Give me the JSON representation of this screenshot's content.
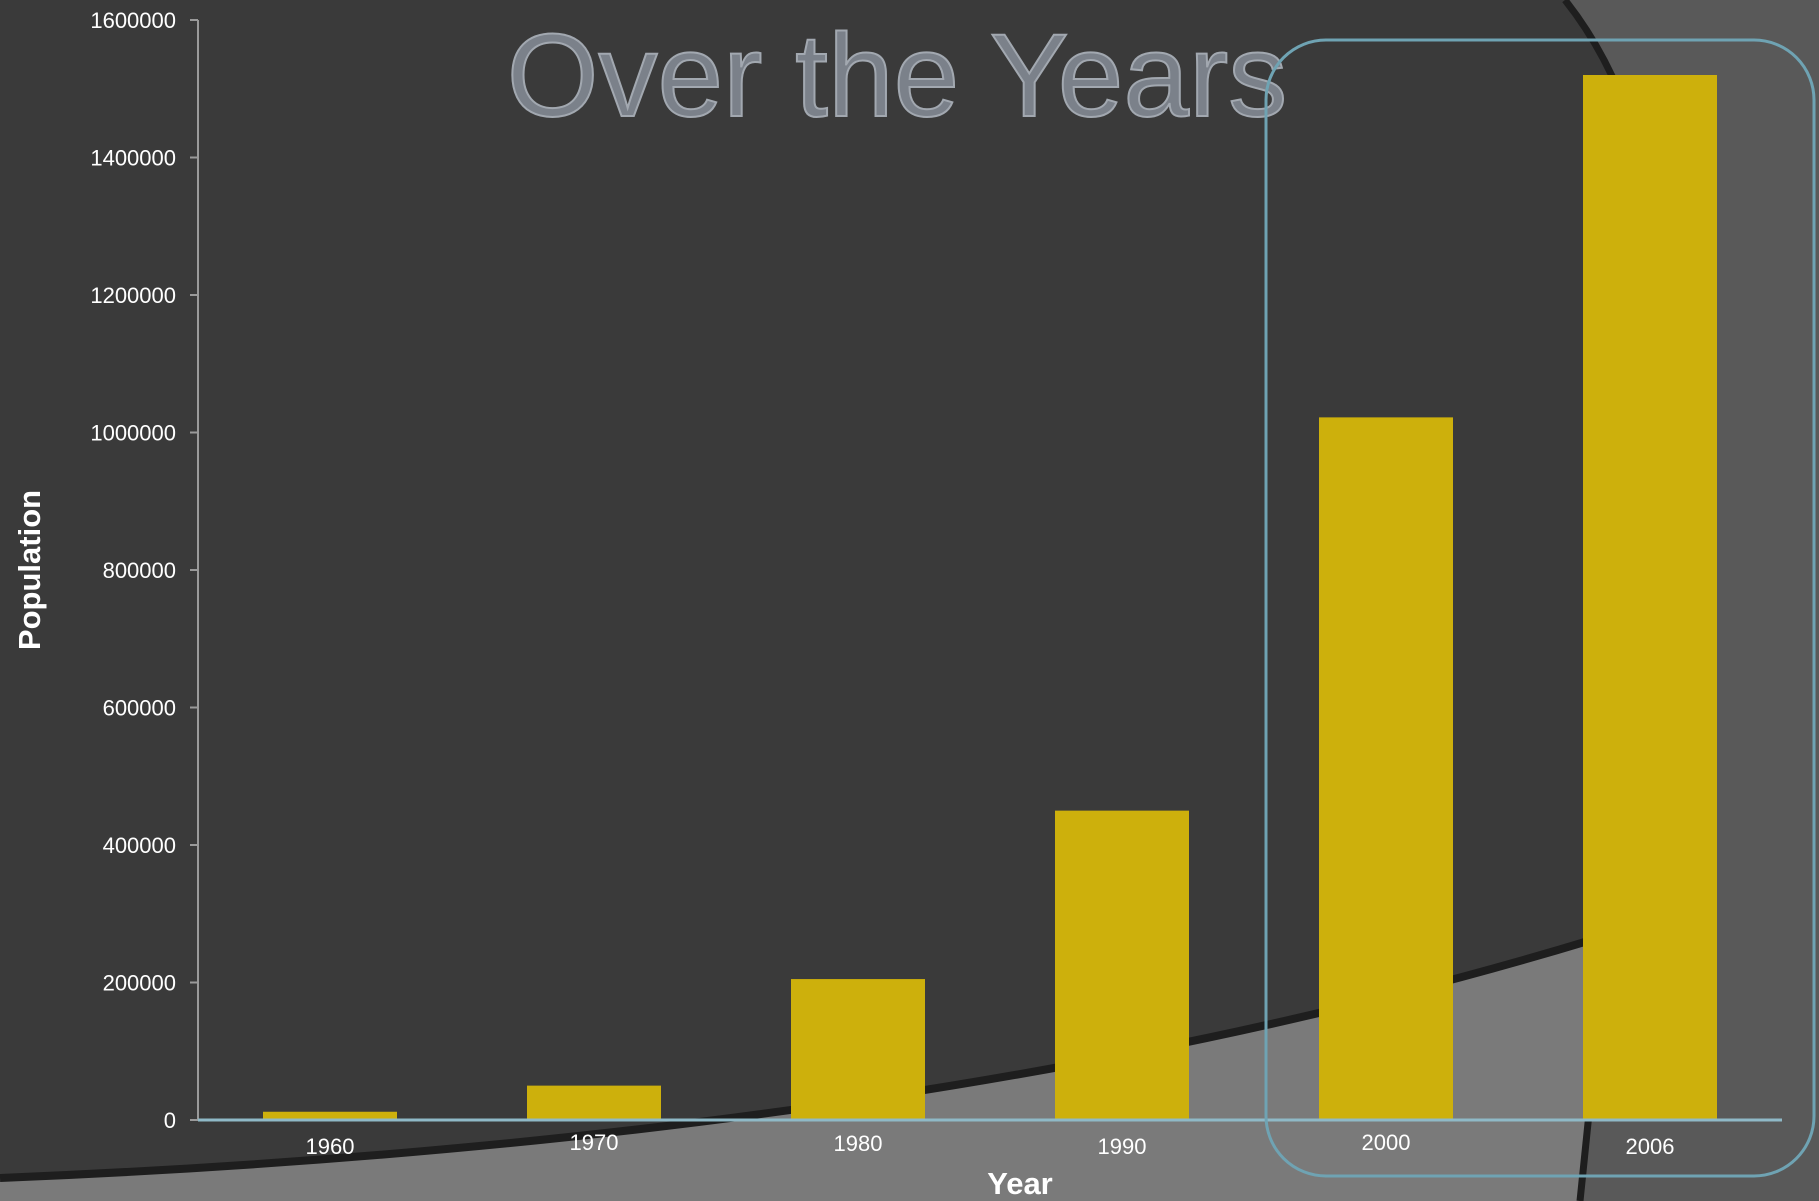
{
  "slide": {
    "title": "Over the Years"
  },
  "colors": {
    "background": "#3a3a3a",
    "swoosh": "#7a7a7a",
    "swoosh_edge": "#1e1e1e",
    "bar": "#cdb00c",
    "highlight_box": "#6fa3b3",
    "axis": "#8fb9c7"
  },
  "chart_data": {
    "type": "bar",
    "categories": [
      "1960",
      "1970",
      "1980",
      "1990",
      "2000",
      "2006"
    ],
    "values": [
      12000,
      50000,
      205000,
      450000,
      1022000,
      1520000
    ],
    "xlabel": "Year",
    "ylabel": "Population",
    "ylim": [
      0,
      1600000
    ],
    "yticks": [
      0,
      200000,
      400000,
      600000,
      800000,
      1000000,
      1200000,
      1400000,
      1600000
    ],
    "grid": false,
    "legend": "none",
    "highlighted_categories": [
      "2000",
      "2006"
    ]
  }
}
